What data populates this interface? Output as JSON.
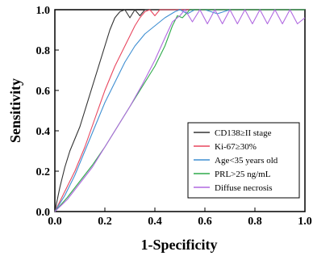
{
  "chart_data": {
    "type": "line",
    "title": "",
    "xlabel": "1-Specificity",
    "ylabel": "Sensitivity",
    "xlim": [
      0.0,
      1.0
    ],
    "ylim": [
      0.0,
      1.0
    ],
    "x_ticks": [
      "0.0",
      "0.2",
      "0.4",
      "0.6",
      "0.8",
      "1.0"
    ],
    "y_ticks": [
      "0.0",
      "0.2",
      "0.4",
      "0.6",
      "0.8",
      "1.0"
    ],
    "grid": false,
    "legend_position": "lower-right",
    "series": [
      {
        "name": "CD138≥II stage",
        "color": "#333333",
        "points": [
          [
            0,
            0
          ],
          [
            0.02,
            0.12
          ],
          [
            0.04,
            0.22
          ],
          [
            0.06,
            0.3
          ],
          [
            0.08,
            0.36
          ],
          [
            0.1,
            0.42
          ],
          [
            0.12,
            0.5
          ],
          [
            0.14,
            0.58
          ],
          [
            0.16,
            0.66
          ],
          [
            0.18,
            0.74
          ],
          [
            0.2,
            0.82
          ],
          [
            0.22,
            0.9
          ],
          [
            0.24,
            0.96
          ],
          [
            0.26,
            0.99
          ],
          [
            0.28,
            1.0
          ],
          [
            0.3,
            0.96
          ],
          [
            0.32,
            1.0
          ],
          [
            0.34,
            0.97
          ],
          [
            0.36,
            1.0
          ],
          [
            0.4,
            1.0
          ],
          [
            0.5,
            1.0
          ],
          [
            0.6,
            1.0
          ],
          [
            0.7,
            1.0
          ],
          [
            0.8,
            1.0
          ],
          [
            0.9,
            1.0
          ],
          [
            1.0,
            1.0
          ]
        ]
      },
      {
        "name": "Ki-67≥30%",
        "color": "#e8475f",
        "points": [
          [
            0,
            0
          ],
          [
            0.04,
            0.1
          ],
          [
            0.08,
            0.2
          ],
          [
            0.12,
            0.32
          ],
          [
            0.16,
            0.46
          ],
          [
            0.2,
            0.6
          ],
          [
            0.24,
            0.72
          ],
          [
            0.28,
            0.82
          ],
          [
            0.32,
            0.92
          ],
          [
            0.34,
            0.96
          ],
          [
            0.36,
            0.99
          ],
          [
            0.38,
            1.0
          ],
          [
            0.4,
            0.97
          ],
          [
            0.42,
            1.0
          ],
          [
            0.5,
            1.0
          ],
          [
            0.6,
            1.0
          ],
          [
            0.7,
            1.0
          ],
          [
            0.8,
            1.0
          ],
          [
            0.9,
            1.0
          ],
          [
            1.0,
            1.0
          ]
        ]
      },
      {
        "name": "Age<35 years old",
        "color": "#3f8fd2",
        "points": [
          [
            0,
            0
          ],
          [
            0.04,
            0.08
          ],
          [
            0.08,
            0.18
          ],
          [
            0.12,
            0.3
          ],
          [
            0.16,
            0.42
          ],
          [
            0.2,
            0.54
          ],
          [
            0.24,
            0.64
          ],
          [
            0.28,
            0.74
          ],
          [
            0.32,
            0.82
          ],
          [
            0.36,
            0.88
          ],
          [
            0.4,
            0.92
          ],
          [
            0.44,
            0.96
          ],
          [
            0.48,
            0.99
          ],
          [
            0.5,
            1.0
          ],
          [
            0.53,
            0.98
          ],
          [
            0.56,
            1.0
          ],
          [
            0.6,
            1.0
          ],
          [
            0.65,
            0.98
          ],
          [
            0.7,
            1.0
          ],
          [
            0.8,
            1.0
          ],
          [
            0.9,
            1.0
          ],
          [
            1.0,
            1.0
          ]
        ]
      },
      {
        "name": "PRL>25 ng/mL",
        "color": "#2eaa4a",
        "points": [
          [
            0,
            0
          ],
          [
            0.05,
            0.07
          ],
          [
            0.1,
            0.15
          ],
          [
            0.15,
            0.23
          ],
          [
            0.2,
            0.32
          ],
          [
            0.25,
            0.42
          ],
          [
            0.3,
            0.52
          ],
          [
            0.35,
            0.62
          ],
          [
            0.4,
            0.72
          ],
          [
            0.44,
            0.82
          ],
          [
            0.47,
            0.92
          ],
          [
            0.49,
            0.97
          ],
          [
            0.51,
            0.96
          ],
          [
            0.54,
            1.0
          ],
          [
            0.6,
            1.0
          ],
          [
            0.7,
            1.0
          ],
          [
            0.8,
            1.0
          ],
          [
            0.9,
            1.0
          ],
          [
            1.0,
            1.0
          ]
        ]
      },
      {
        "name": "Diffuse necrosis",
        "color": "#b069e0",
        "points": [
          [
            0,
            0
          ],
          [
            0.05,
            0.06
          ],
          [
            0.1,
            0.14
          ],
          [
            0.15,
            0.22
          ],
          [
            0.2,
            0.32
          ],
          [
            0.25,
            0.42
          ],
          [
            0.3,
            0.52
          ],
          [
            0.35,
            0.63
          ],
          [
            0.4,
            0.75
          ],
          [
            0.44,
            0.86
          ],
          [
            0.47,
            0.94
          ],
          [
            0.5,
            0.97
          ],
          [
            0.52,
            1.0
          ],
          [
            0.55,
            0.94
          ],
          [
            0.58,
            1.0
          ],
          [
            0.61,
            0.93
          ],
          [
            0.64,
            1.0
          ],
          [
            0.67,
            0.93
          ],
          [
            0.7,
            1.0
          ],
          [
            0.73,
            0.93
          ],
          [
            0.76,
            1.0
          ],
          [
            0.79,
            0.93
          ],
          [
            0.82,
            1.0
          ],
          [
            0.85,
            0.93
          ],
          [
            0.88,
            1.0
          ],
          [
            0.91,
            0.93
          ],
          [
            0.94,
            1.0
          ],
          [
            0.97,
            0.93
          ],
          [
            1.0,
            0.96
          ]
        ]
      }
    ]
  }
}
